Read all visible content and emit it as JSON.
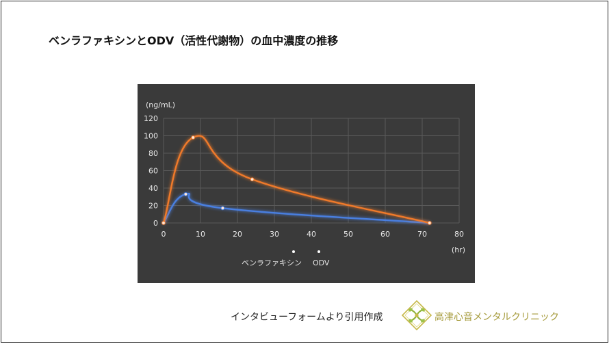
{
  "title": "ベンラファキシンとODV（活性代謝物）の血中濃度の推移",
  "credit": "インタビューフォームより引用作成",
  "brand": {
    "name": "高津心音メンタルクリニック",
    "color": "#a59a3a"
  },
  "colors": {
    "panel_bg": "#3a3a3a",
    "grid": "#5a5a5a",
    "axis_text": "#e8e8e8",
    "venlafaxine": "#4a7fe0",
    "odv": "#f07a2a"
  },
  "chart_data": {
    "type": "line",
    "y_unit_label": "(ng/mL)",
    "x_unit_label": "(hr)",
    "xlim": [
      0,
      80
    ],
    "ylim": [
      0,
      120
    ],
    "x_ticks": [
      0,
      10,
      20,
      30,
      40,
      50,
      60,
      70,
      80
    ],
    "y_ticks": [
      0,
      20,
      40,
      60,
      80,
      100,
      120
    ],
    "grid": true,
    "legend_position": "bottom",
    "series": [
      {
        "name": "ベンラファキシン",
        "color": "#4a7fe0",
        "points": [
          [
            0,
            0
          ],
          [
            6,
            33
          ],
          [
            16,
            17
          ],
          [
            72,
            0
          ]
        ]
      },
      {
        "name": "ODV",
        "color": "#f07a2a",
        "points": [
          [
            0,
            0
          ],
          [
            8,
            98
          ],
          [
            24,
            50
          ],
          [
            72,
            0
          ]
        ]
      }
    ]
  }
}
